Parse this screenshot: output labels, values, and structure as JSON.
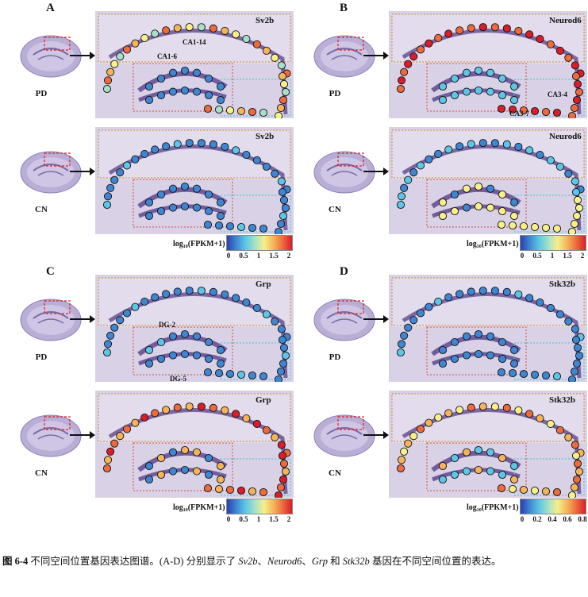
{
  "panels": [
    {
      "letter": "A",
      "gene": "Sv2b",
      "rows": [
        {
          "condition": "PD",
          "gene": "Sv2b"
        },
        {
          "condition": "CN",
          "gene": "Sv2b"
        }
      ],
      "callouts": [
        "CA1-6",
        "CA1-14"
      ],
      "colorbar": {
        "title": "log₁₀(FPKM+1)",
        "ticks": [
          "0",
          "0.5",
          "1",
          "1.5",
          "2"
        ]
      }
    },
    {
      "letter": "B",
      "gene": "Neurod6",
      "rows": [
        {
          "condition": "PD",
          "gene": "Neurod6"
        },
        {
          "condition": "CN",
          "gene": "Neurod6"
        }
      ],
      "callouts": [
        "CA3-4",
        "CA3-7"
      ],
      "colorbar": {
        "title": "log₁₀(FPKM+1)",
        "ticks": [
          "0",
          "0.5",
          "1",
          "1.5",
          "2"
        ]
      }
    },
    {
      "letter": "C",
      "gene": "Grp",
      "rows": [
        {
          "condition": "PD",
          "gene": "Grp"
        },
        {
          "condition": "CN",
          "gene": "Grp"
        }
      ],
      "callouts": [
        "DG-2",
        "DG-5"
      ],
      "colorbar": {
        "title": "log₁₀(FPKM+1)",
        "ticks": [
          "0",
          "0.5",
          "1",
          "1.5",
          "2"
        ]
      }
    },
    {
      "letter": "D",
      "gene": "Stk32b",
      "rows": [
        {
          "condition": "PD",
          "gene": "Stk32b"
        },
        {
          "condition": "CN",
          "gene": "Stk32b"
        }
      ],
      "callouts": [],
      "colorbar": {
        "title": "log₁₀(FPKM+1)",
        "ticks": [
          "0",
          "0.2",
          "0.4",
          "0.6",
          "0.8"
        ]
      }
    }
  ],
  "caption": {
    "label": "图 6-4",
    "text_1": " 不同空间位置基因表达图谱。(A-D) 分别显示了 ",
    "gene_1": "Sv2b",
    "sep_1": "、",
    "gene_2": "Neurod6",
    "sep_2": "、",
    "gene_3": "Grp",
    "and": " 和 ",
    "gene_4": "Stk32b",
    "text_2": " 基因在不同空间位置的表达。"
  },
  "colors": {
    "tissue_bg": "#d9d2e6",
    "tissue_dark": "#5a3f8a",
    "box_orange": "#c98a2a",
    "box_red": "#d9453a",
    "box_cyan": "#39c4d8"
  }
}
